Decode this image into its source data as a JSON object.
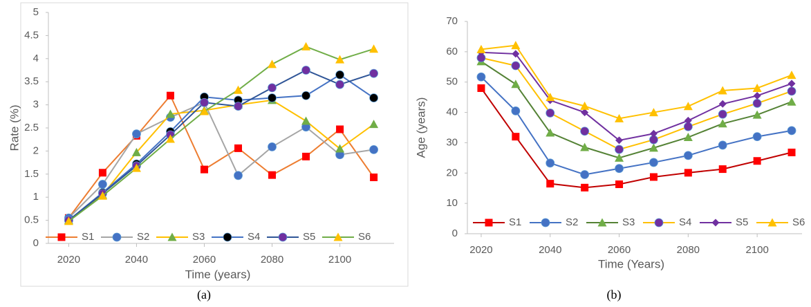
{
  "chart_data": [
    {
      "type": "line",
      "caption": "(a)",
      "x_label": "Time (years)",
      "y_label": "Rate (%)",
      "x": [
        2020,
        2030,
        2040,
        2050,
        2060,
        2070,
        2080,
        2090,
        2100,
        2110
      ],
      "xlim": [
        2014,
        2116
      ],
      "xticks": [
        2020,
        2040,
        2060,
        2080,
        2100
      ],
      "ylim": [
        0,
        5
      ],
      "yticks": [
        0,
        0.5,
        1,
        1.5,
        2,
        2.5,
        3,
        3.5,
        4,
        4.5,
        5
      ],
      "legend": "bottom",
      "grid": false,
      "series": [
        {
          "name": "S1",
          "color": "#ed7d31",
          "marker_color": "#ff0000",
          "marker": "square",
          "values": [
            0.55,
            1.53,
            2.33,
            3.2,
            1.6,
            2.06,
            1.48,
            1.88,
            2.47,
            1.43
          ]
        },
        {
          "name": "S2",
          "color": "#a5a5a5",
          "marker_color": "#4472c4",
          "marker": "circle",
          "values": [
            0.55,
            1.28,
            2.37,
            2.73,
            3.05,
            1.47,
            2.09,
            2.52,
            1.92,
            2.03
          ]
        },
        {
          "name": "S3",
          "color": "#ffc000",
          "marker_color": "#70ad47",
          "marker": "triangle",
          "values": [
            0.5,
            1.05,
            1.97,
            2.8,
            2.88,
            3.0,
            3.1,
            2.65,
            2.05,
            2.58
          ]
        },
        {
          "name": "S4",
          "color": "#4472c4",
          "marker_color": "#000000",
          "marker": "circle",
          "values": [
            0.5,
            1.1,
            1.72,
            2.42,
            3.17,
            3.1,
            3.15,
            3.2,
            3.65,
            3.15
          ]
        },
        {
          "name": "S5",
          "color": "#2f5597",
          "marker_color": "#7030a0",
          "marker": "circle",
          "values": [
            0.5,
            1.08,
            1.68,
            2.35,
            3.05,
            2.97,
            3.37,
            3.75,
            3.44,
            3.68
          ]
        },
        {
          "name": "S6",
          "color": "#70ad47",
          "marker_color": "#ffc000",
          "marker": "triangle",
          "values": [
            0.48,
            1.03,
            1.63,
            2.26,
            2.86,
            3.32,
            3.88,
            4.26,
            3.98,
            4.21
          ]
        }
      ]
    },
    {
      "type": "line",
      "caption": "(b)",
      "x_label": "Time (Years)",
      "y_label": "Age (years)",
      "x": [
        2020,
        2030,
        2040,
        2050,
        2060,
        2070,
        2080,
        2090,
        2100,
        2110
      ],
      "xlim": [
        2016,
        2113
      ],
      "xticks": [
        2020,
        2040,
        2060,
        2080,
        2100
      ],
      "ylim": [
        0,
        70
      ],
      "yticks": [
        0,
        10,
        20,
        30,
        40,
        50,
        60,
        70
      ],
      "legend": "bottom",
      "grid": false,
      "series": [
        {
          "name": "S1",
          "color": "#c00000",
          "marker_color": "#ff0000",
          "marker": "square",
          "values": [
            48,
            32,
            16.5,
            15.2,
            16.3,
            18.7,
            20.1,
            21.3,
            24,
            26.8
          ]
        },
        {
          "name": "S2",
          "color": "#4472c4",
          "marker_color": "#4472c4",
          "marker": "circle",
          "values": [
            51.7,
            40.5,
            23.3,
            19.5,
            21.5,
            23.5,
            25.8,
            29.2,
            32,
            34
          ]
        },
        {
          "name": "S3",
          "color": "#548235",
          "marker_color": "#70ad47",
          "marker": "triangle",
          "values": [
            56.8,
            49.3,
            33.3,
            28.5,
            25,
            28.3,
            31.8,
            36.3,
            39.2,
            43.5
          ]
        },
        {
          "name": "S4",
          "color": "#ffc000",
          "marker_color": "#7030a0",
          "marker": "circle",
          "values": [
            58,
            55.4,
            39.8,
            33.8,
            27.8,
            31,
            35.3,
            39.4,
            43,
            47
          ]
        },
        {
          "name": "S5",
          "color": "#7030a0",
          "marker_color": "#7030a0",
          "marker": "diamond",
          "values": [
            59.8,
            59.3,
            44,
            40,
            30.8,
            33,
            37.3,
            42.8,
            45.5,
            49.5
          ]
        },
        {
          "name": "S6",
          "color": "#ffc000",
          "marker_color": "#ffc000",
          "marker": "triangle",
          "values": [
            60.8,
            62.1,
            45,
            42.1,
            38,
            40,
            42,
            47.2,
            48,
            52.3
          ]
        }
      ]
    }
  ]
}
